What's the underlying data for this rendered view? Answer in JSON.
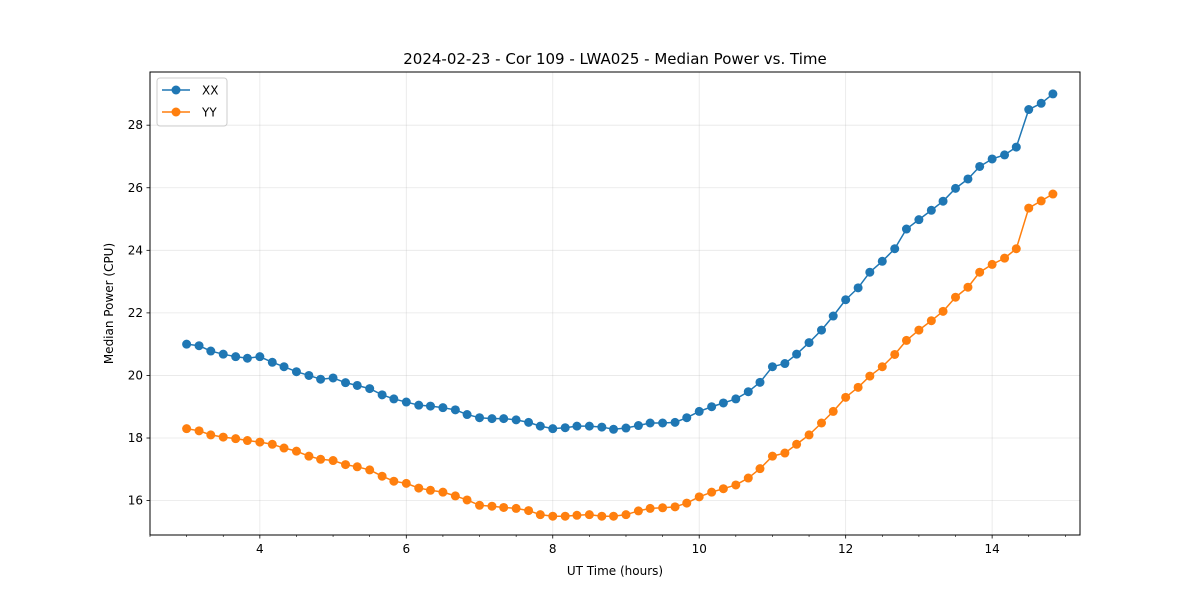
{
  "chart_data": {
    "type": "line",
    "title": "2024-02-23 - Cor 109 - LWA025 - Median Power vs. Time",
    "xlabel": "UT Time (hours)",
    "ylabel": "Median Power (CPU)",
    "xlim": [
      2.5,
      15.2
    ],
    "ylim": [
      14.9,
      29.7
    ],
    "xticks": [
      4,
      6,
      8,
      10,
      12,
      14
    ],
    "yticks": [
      16,
      18,
      20,
      22,
      24,
      26,
      28
    ],
    "x_minor_step": 0.5,
    "grid": true,
    "legend": "top-left",
    "x": [
      3.0,
      3.17,
      3.33,
      3.5,
      3.67,
      3.83,
      4.0,
      4.17,
      4.33,
      4.5,
      4.67,
      4.83,
      5.0,
      5.17,
      5.33,
      5.5,
      5.67,
      5.83,
      6.0,
      6.17,
      6.33,
      6.5,
      6.67,
      6.83,
      7.0,
      7.17,
      7.33,
      7.5,
      7.67,
      7.83,
      8.0,
      8.17,
      8.33,
      8.5,
      8.67,
      8.83,
      9.0,
      9.17,
      9.33,
      9.5,
      9.67,
      9.83,
      10.0,
      10.17,
      10.33,
      10.5,
      10.67,
      10.83,
      11.0,
      11.17,
      11.33,
      11.5,
      11.67,
      11.83,
      12.0,
      12.17,
      12.33,
      12.5,
      12.67,
      12.83,
      13.0,
      13.17,
      13.33,
      13.5,
      13.67,
      13.83,
      14.0,
      14.17,
      14.33,
      14.5,
      14.67,
      14.83
    ],
    "series": [
      {
        "name": "XX",
        "color": "#1f77b4",
        "values": [
          21.0,
          20.95,
          20.78,
          20.68,
          20.6,
          20.55,
          20.6,
          20.42,
          20.28,
          20.12,
          20.0,
          19.88,
          19.92,
          19.77,
          19.68,
          19.58,
          19.38,
          19.25,
          19.15,
          19.05,
          19.02,
          18.97,
          18.9,
          18.75,
          18.65,
          18.62,
          18.62,
          18.58,
          18.5,
          18.38,
          18.3,
          18.33,
          18.38,
          18.38,
          18.35,
          18.28,
          18.32,
          18.4,
          18.48,
          18.48,
          18.5,
          18.65,
          18.85,
          19.0,
          19.12,
          19.25,
          19.48,
          19.78,
          20.28,
          20.38,
          20.68,
          21.05,
          21.45,
          21.9,
          22.42,
          22.8,
          23.3,
          23.65,
          24.05,
          24.68,
          24.98,
          25.28,
          25.57,
          25.98,
          26.28,
          26.68,
          26.92,
          27.05,
          27.3,
          28.5,
          28.7,
          29.0
        ]
      },
      {
        "name": "YY",
        "color": "#ff7f0e",
        "values": [
          18.3,
          18.23,
          18.1,
          18.03,
          17.98,
          17.92,
          17.87,
          17.8,
          17.68,
          17.58,
          17.42,
          17.32,
          17.28,
          17.15,
          17.08,
          16.98,
          16.78,
          16.62,
          16.55,
          16.4,
          16.33,
          16.27,
          16.15,
          16.02,
          15.85,
          15.82,
          15.78,
          15.75,
          15.68,
          15.55,
          15.5,
          15.5,
          15.53,
          15.55,
          15.5,
          15.5,
          15.55,
          15.67,
          15.75,
          15.77,
          15.8,
          15.92,
          16.12,
          16.27,
          16.38,
          16.5,
          16.72,
          17.02,
          17.42,
          17.52,
          17.8,
          18.1,
          18.48,
          18.85,
          19.3,
          19.62,
          19.98,
          20.28,
          20.67,
          21.12,
          21.45,
          21.75,
          22.05,
          22.5,
          22.82,
          23.3,
          23.55,
          23.75,
          24.05,
          25.35,
          25.58,
          25.8
        ]
      }
    ]
  }
}
